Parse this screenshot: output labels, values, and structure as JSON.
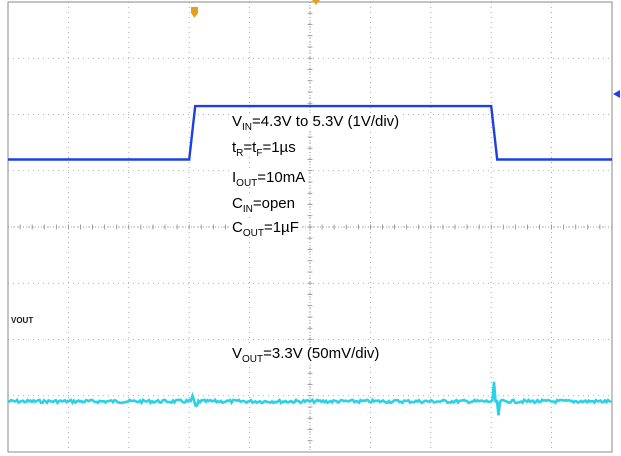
{
  "chart_data": {
    "type": "line",
    "title": "",
    "divisions": {
      "x": 10,
      "y": 8
    },
    "grid": true,
    "series": [
      {
        "name": "VIN",
        "color": "#1c3fe6",
        "points": [
          [
            0,
            4.3
          ],
          [
            3.0,
            4.3
          ],
          [
            3.1,
            5.3
          ],
          [
            8.0,
            5.3
          ],
          [
            8.1,
            4.3
          ],
          [
            10,
            4.3
          ]
        ]
      },
      {
        "name": "VOUT",
        "color": "#29d2e6",
        "glitches": [
          {
            "t": 3.05,
            "dv": [
              8,
              -6
            ]
          },
          {
            "t": 8.05,
            "dv": [
              28,
              -20
            ]
          }
        ]
      }
    ],
    "channel_label": "VOUT",
    "annotations": [
      {
        "parts": [
          {
            "t": "V"
          },
          {
            "s": "IN"
          },
          {
            "t": "=4.3V to 5.3V (1V/div)"
          }
        ]
      },
      {
        "parts": [
          {
            "t": "t"
          },
          {
            "s": "R"
          },
          {
            "t": "=t"
          },
          {
            "s": "F"
          },
          {
            "t": "=1µs"
          }
        ]
      },
      {
        "parts": [
          {
            "t": "I"
          },
          {
            "s": "OUT"
          },
          {
            "t": "=10mA"
          }
        ]
      },
      {
        "parts": [
          {
            "t": "C"
          },
          {
            "s": "IN"
          },
          {
            "t": "=open"
          }
        ]
      },
      {
        "parts": [
          {
            "t": "C"
          },
          {
            "s": "OUT"
          },
          {
            "t": "=1µF"
          }
        ]
      },
      {
        "parts": [
          {
            "t": "V"
          },
          {
            "s": "OUT"
          },
          {
            "t": "=3.3V (50mV/div)"
          }
        ]
      }
    ],
    "markers": {
      "trigger_color": "#e6a020",
      "level_color": "#1c3fe6"
    }
  }
}
